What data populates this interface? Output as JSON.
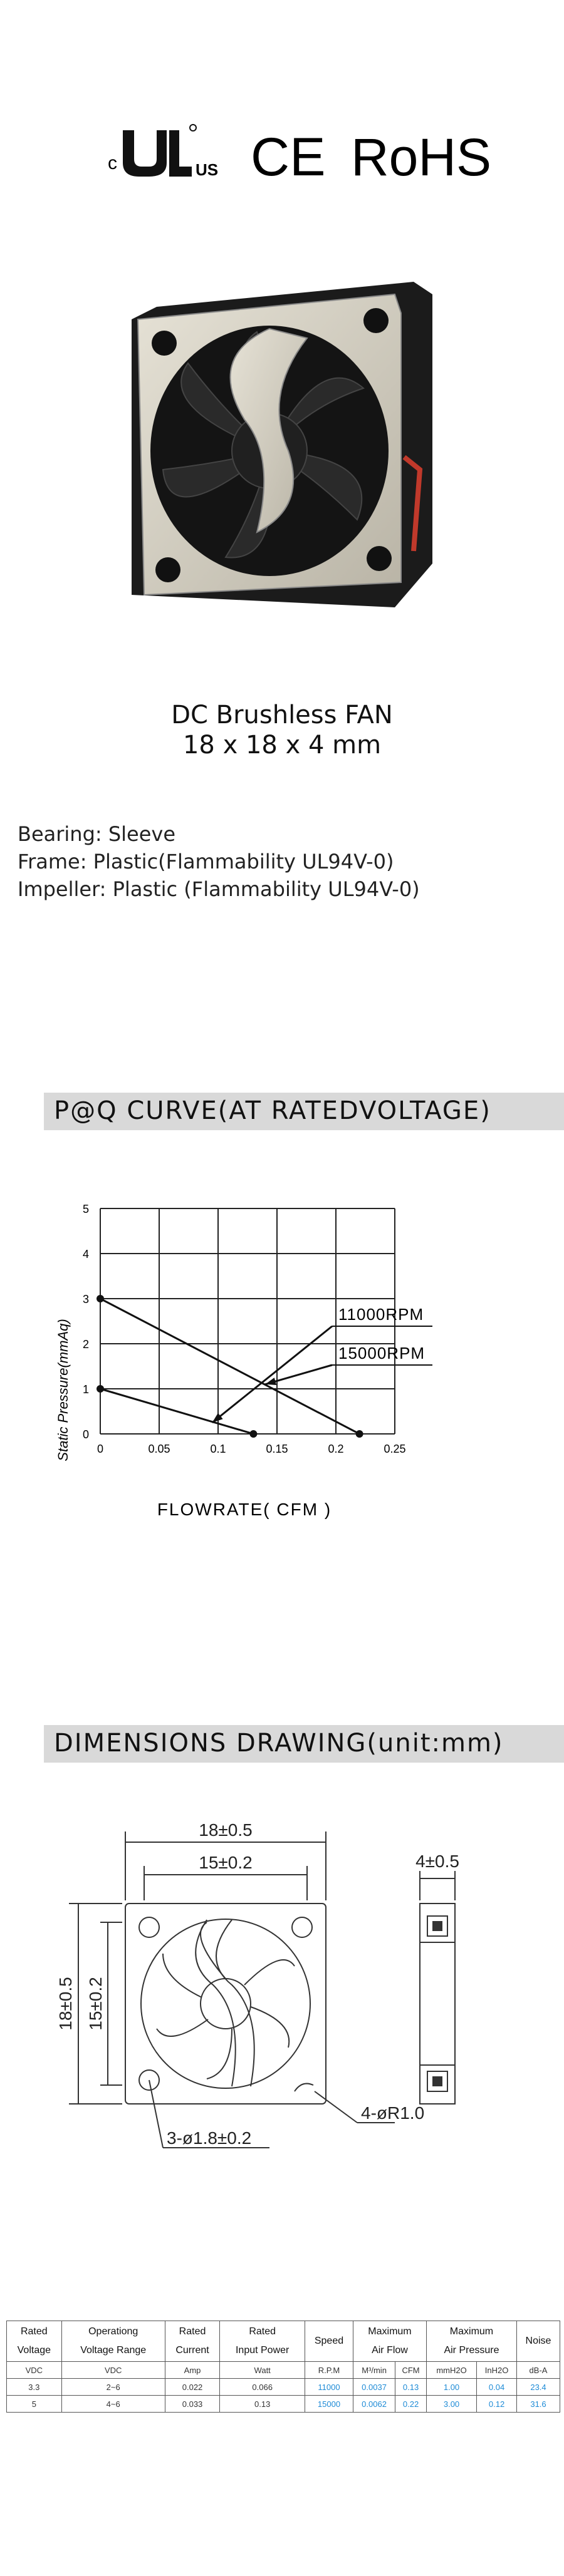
{
  "certifications": {
    "ul_prefix": "c",
    "ul_suffix": "US",
    "ce": "CE",
    "rohs": "RoHS"
  },
  "product": {
    "title_line1": "DC Brushless FAN",
    "title_line2": "18 x 18 x 4 mm"
  },
  "specs": {
    "bearing": "Bearing: Sleeve",
    "frame": "Frame: Plastic(Flammability UL94V-0)",
    "impeller": "Impeller: Plastic (Flammability UL94V-0)"
  },
  "pq_section": {
    "heading": "P@Q CURVE(AT RATEDVOLTAGE)"
  },
  "chart_data": {
    "type": "line",
    "ylabel": "Static Pressure(mmAq)",
    "xlabel": "FLOWRATE( CFM )",
    "xlim": [
      0,
      0.25
    ],
    "ylim": [
      0,
      5
    ],
    "x_ticks": [
      "0",
      "0.05",
      "0.1",
      "0.15",
      "0.2",
      "0.25"
    ],
    "y_ticks": [
      "0",
      "1",
      "2",
      "3",
      "4",
      "5"
    ],
    "grid": true,
    "series": [
      {
        "name": "11000RPM",
        "x": [
          0,
          0.13
        ],
        "y": [
          1,
          0
        ]
      },
      {
        "name": "15000RPM",
        "x": [
          0,
          0.22
        ],
        "y": [
          3,
          0
        ]
      }
    ]
  },
  "dims_section": {
    "heading": "DIMENSIONS DRAWING(unit:mm)",
    "width_outer": "18±0.5",
    "width_inner": "15±0.2",
    "height_outer": "18±0.5",
    "height_inner": "15±0.2",
    "thickness": "4±0.5",
    "holes": "3-ø1.8±0.2",
    "corner_radius": "4-øR1.0"
  },
  "table": {
    "headers": [
      [
        "Rated",
        "Voltage"
      ],
      [
        "Operationg",
        "Voltage Range"
      ],
      [
        "Rated",
        "Current"
      ],
      [
        "Rated",
        "Input Power"
      ],
      [
        "Speed",
        ""
      ],
      [
        "Maximum",
        "Air Flow"
      ],
      [
        "Maximum",
        "Air Pressure"
      ],
      [
        "Noise",
        ""
      ]
    ],
    "units": [
      "VDC",
      "VDC",
      "Amp",
      "Watt",
      "R.P.M",
      "M³/min",
      "CFM",
      "mmH2O",
      "InH2O",
      "dB-A"
    ],
    "rows": [
      [
        "3.3",
        "2~6",
        "0.022",
        "0.066",
        "11000",
        "0.0037",
        "0.13",
        "1.00",
        "0.04",
        "23.4"
      ],
      [
        "5",
        "4~6",
        "0.033",
        "0.13",
        "15000",
        "0.0062",
        "0.22",
        "3.00",
        "0.12",
        "31.6"
      ]
    ]
  }
}
